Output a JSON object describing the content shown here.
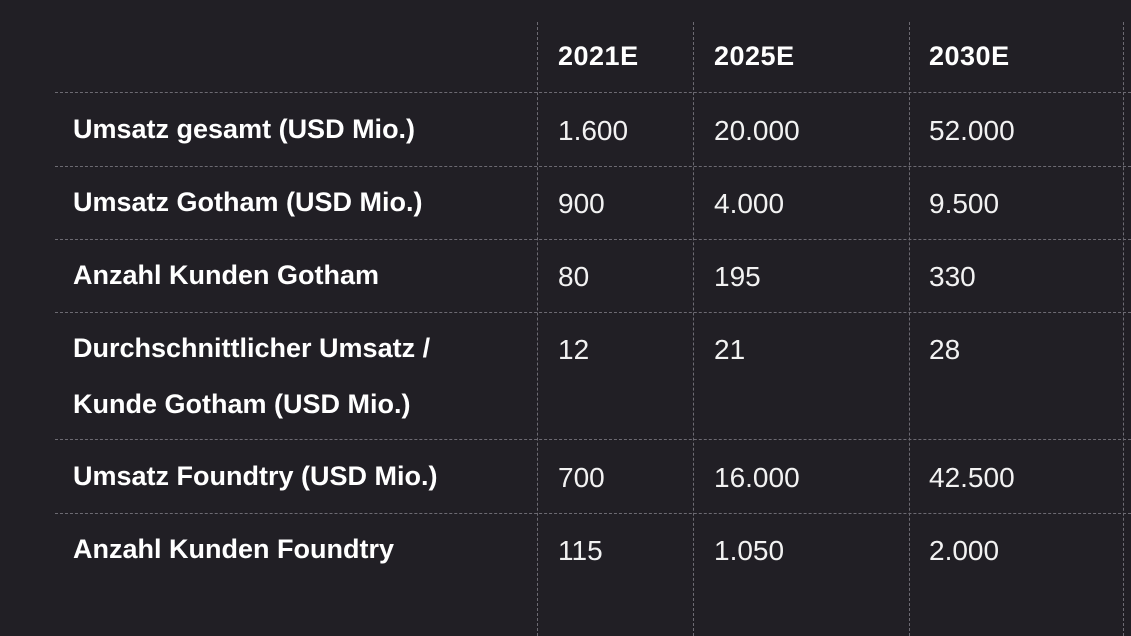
{
  "chart_data": {
    "type": "table",
    "columns": [
      "2021E",
      "2025E",
      "2030E"
    ],
    "rows": [
      {
        "label": "Umsatz gesamt (USD Mio.)",
        "values": [
          "1.600",
          "20.000",
          "52.000"
        ]
      },
      {
        "label": "Umsatz Gotham (USD Mio.)",
        "values": [
          "900",
          "4.000",
          "9.500"
        ]
      },
      {
        "label": "Anzahl Kunden Gotham",
        "values": [
          "80",
          "195",
          "330"
        ]
      },
      {
        "label": "Durchschnittlicher Umsatz / Kunde Gotham (USD Mio.)",
        "label_lines": [
          "Durchschnittlicher Umsatz /",
          "Kunde Gotham (USD Mio.)"
        ],
        "values": [
          "12",
          "21",
          "28"
        ]
      },
      {
        "label": "Umsatz Foundtry (USD Mio.)",
        "values": [
          "700",
          "16.000",
          "42.500"
        ]
      },
      {
        "label": "Anzahl Kunden Foundtry",
        "values": [
          "115",
          "1.050",
          "2.000"
        ]
      }
    ]
  },
  "colors": {
    "background": "#211f25",
    "text": "#ffffff",
    "grid": "#6c6a72"
  }
}
